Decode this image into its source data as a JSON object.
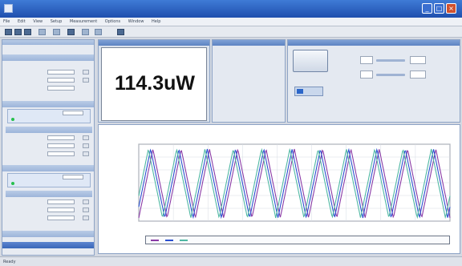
{
  "window": {
    "title": ""
  },
  "menu": [
    "File",
    "Edit",
    "View",
    "Setup",
    "Measurement",
    "Options",
    "Window",
    "Help"
  ],
  "readout": {
    "value": "114.3uW"
  },
  "statusbar": {
    "left": "Ready",
    "right": "",
    "right2": ""
  },
  "colors": {
    "series_purple": "#8a3aa6",
    "series_blue": "#2a4fd0",
    "series_teal": "#4fb7a3",
    "status_red": "#e22b17"
  },
  "chart_data": {
    "type": "line",
    "title": "",
    "xlabel": "",
    "ylabel": "",
    "grid": true,
    "x_ticks": [
      "",
      "",
      "",
      "",
      "",
      "",
      "",
      "",
      "",
      ""
    ],
    "y_ticks": [
      "",
      "",
      "",
      "",
      "",
      "",
      ""
    ],
    "legend_position": "bottom",
    "series": [
      {
        "name": "",
        "color": "#8a3aa6",
        "cycles": 11,
        "phase": 0.0
      },
      {
        "name": "",
        "color": "#2a4fd0",
        "cycles": 11,
        "phase": 0.08
      },
      {
        "name": "",
        "color": "#4fb7a3",
        "cycles": 11,
        "phase": 0.16
      }
    ]
  }
}
